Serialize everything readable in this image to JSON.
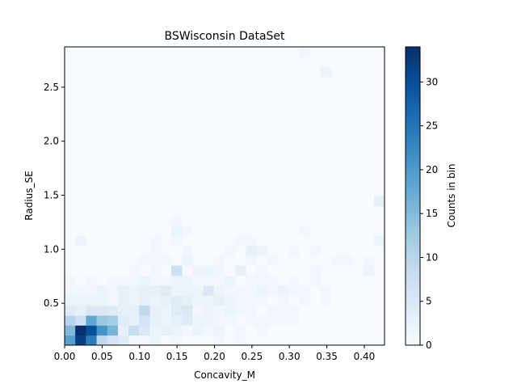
{
  "chart_data": {
    "type": "heatmap",
    "title": "BSWisconsin DataSet",
    "xlabel": "Concavity_M",
    "ylabel": "Radius_SE",
    "colorbar_label": "Counts in bin",
    "colormap": "Blues",
    "xlim": [
      0.0,
      0.427
    ],
    "ylim": [
      0.112,
      2.873
    ],
    "clim": [
      0,
      34
    ],
    "x_ticks": [
      0.0,
      0.05,
      0.1,
      0.15,
      0.2,
      0.25,
      0.3,
      0.35,
      0.4
    ],
    "x_tick_labels": [
      "0.00",
      "0.05",
      "0.10",
      "0.15",
      "0.20",
      "0.25",
      "0.30",
      "0.35",
      "0.40"
    ],
    "y_ticks": [
      0.5,
      1.0,
      1.5,
      2.0,
      2.5
    ],
    "y_tick_labels": [
      "0.5",
      "1.0",
      "1.5",
      "2.0",
      "2.5"
    ],
    "colorbar_ticks": [
      0,
      5,
      10,
      15,
      20,
      25,
      30
    ],
    "colorbar_tick_labels": [
      "0",
      "5",
      "10",
      "15",
      "20",
      "25",
      "30"
    ],
    "bins_x": 30,
    "bins_y": 30,
    "grid": false,
    "cells": [
      [
        0,
        0,
        19
      ],
      [
        1,
        0,
        32
      ],
      [
        2,
        0,
        24
      ],
      [
        3,
        0,
        9
      ],
      [
        4,
        0,
        6
      ],
      [
        5,
        0,
        4
      ],
      [
        6,
        0,
        1
      ],
      [
        7,
        0,
        1
      ],
      [
        8,
        0,
        2
      ],
      [
        10,
        0,
        1
      ],
      [
        14,
        0,
        1
      ],
      [
        16,
        0,
        1
      ],
      [
        0,
        1,
        15
      ],
      [
        1,
        1,
        34
      ],
      [
        2,
        1,
        30
      ],
      [
        3,
        1,
        21
      ],
      [
        4,
        1,
        16
      ],
      [
        5,
        1,
        3
      ],
      [
        6,
        1,
        8
      ],
      [
        7,
        1,
        5
      ],
      [
        8,
        1,
        2
      ],
      [
        9,
        1,
        3
      ],
      [
        10,
        1,
        2
      ],
      [
        11,
        1,
        1
      ],
      [
        12,
        1,
        2
      ],
      [
        13,
        1,
        1
      ],
      [
        14,
        1,
        2
      ],
      [
        16,
        1,
        1
      ],
      [
        18,
        1,
        1
      ],
      [
        0,
        2,
        10
      ],
      [
        1,
        2,
        7
      ],
      [
        2,
        2,
        18
      ],
      [
        3,
        2,
        13
      ],
      [
        4,
        2,
        12
      ],
      [
        5,
        2,
        4
      ],
      [
        6,
        2,
        3
      ],
      [
        7,
        2,
        6
      ],
      [
        8,
        2,
        3
      ],
      [
        9,
        2,
        2
      ],
      [
        10,
        2,
        3
      ],
      [
        11,
        2,
        4
      ],
      [
        12,
        2,
        2
      ],
      [
        13,
        2,
        2
      ],
      [
        14,
        2,
        1
      ],
      [
        15,
        2,
        1
      ],
      [
        17,
        2,
        1
      ],
      [
        18,
        2,
        1
      ],
      [
        19,
        2,
        1
      ],
      [
        20,
        2,
        1
      ],
      [
        21,
        2,
        1
      ],
      [
        0,
        3,
        4
      ],
      [
        1,
        3,
        3
      ],
      [
        2,
        3,
        5
      ],
      [
        3,
        3,
        5
      ],
      [
        4,
        3,
        4
      ],
      [
        5,
        3,
        3
      ],
      [
        6,
        3,
        3
      ],
      [
        7,
        3,
        9
      ],
      [
        8,
        3,
        3
      ],
      [
        9,
        3,
        2
      ],
      [
        10,
        3,
        4
      ],
      [
        11,
        3,
        5
      ],
      [
        12,
        3,
        1
      ],
      [
        13,
        3,
        2
      ],
      [
        14,
        3,
        1
      ],
      [
        15,
        3,
        2
      ],
      [
        16,
        3,
        1
      ],
      [
        17,
        3,
        1
      ],
      [
        19,
        3,
        1
      ],
      [
        20,
        3,
        1
      ],
      [
        21,
        3,
        1
      ],
      [
        0,
        4,
        2
      ],
      [
        1,
        4,
        2
      ],
      [
        2,
        4,
        2
      ],
      [
        3,
        4,
        2
      ],
      [
        4,
        4,
        1
      ],
      [
        5,
        4,
        3
      ],
      [
        6,
        4,
        2
      ],
      [
        7,
        4,
        3
      ],
      [
        8,
        4,
        2
      ],
      [
        9,
        4,
        3
      ],
      [
        10,
        4,
        4
      ],
      [
        11,
        4,
        3
      ],
      [
        12,
        4,
        2
      ],
      [
        13,
        4,
        2
      ],
      [
        14,
        4,
        3
      ],
      [
        15,
        4,
        2
      ],
      [
        16,
        4,
        1
      ],
      [
        17,
        4,
        1
      ],
      [
        18,
        4,
        1
      ],
      [
        20,
        4,
        1
      ],
      [
        22,
        4,
        1
      ],
      [
        24,
        4,
        1
      ],
      [
        0,
        5,
        1
      ],
      [
        1,
        5,
        1
      ],
      [
        2,
        5,
        1
      ],
      [
        3,
        5,
        2
      ],
      [
        4,
        5,
        1
      ],
      [
        5,
        5,
        3
      ],
      [
        6,
        5,
        2
      ],
      [
        7,
        5,
        3
      ],
      [
        8,
        5,
        3
      ],
      [
        9,
        5,
        4
      ],
      [
        10,
        5,
        2
      ],
      [
        11,
        5,
        2
      ],
      [
        12,
        5,
        2
      ],
      [
        13,
        5,
        5
      ],
      [
        14,
        5,
        2
      ],
      [
        15,
        5,
        1
      ],
      [
        16,
        5,
        1
      ],
      [
        17,
        5,
        1
      ],
      [
        18,
        5,
        2
      ],
      [
        19,
        5,
        1
      ],
      [
        20,
        5,
        2
      ],
      [
        21,
        5,
        1
      ],
      [
        22,
        5,
        1
      ],
      [
        24,
        5,
        1
      ],
      [
        0,
        6,
        1
      ],
      [
        2,
        6,
        1
      ],
      [
        4,
        6,
        1
      ],
      [
        5,
        6,
        1
      ],
      [
        6,
        6,
        1
      ],
      [
        7,
        6,
        2
      ],
      [
        8,
        6,
        1
      ],
      [
        9,
        6,
        1
      ],
      [
        10,
        6,
        2
      ],
      [
        11,
        6,
        2
      ],
      [
        12,
        6,
        1
      ],
      [
        13,
        6,
        1
      ],
      [
        14,
        6,
        1
      ],
      [
        15,
        6,
        2
      ],
      [
        17,
        6,
        1
      ],
      [
        18,
        6,
        1
      ],
      [
        19,
        6,
        1
      ],
      [
        21,
        6,
        1
      ],
      [
        23,
        6,
        1
      ],
      [
        6,
        7,
        1
      ],
      [
        8,
        7,
        1
      ],
      [
        10,
        7,
        7
      ],
      [
        12,
        7,
        2
      ],
      [
        13,
        7,
        2
      ],
      [
        14,
        7,
        1
      ],
      [
        16,
        7,
        3
      ],
      [
        18,
        7,
        1
      ],
      [
        23,
        7,
        1
      ],
      [
        28,
        7,
        2
      ],
      [
        7,
        8,
        1
      ],
      [
        8,
        8,
        1
      ],
      [
        9,
        8,
        1
      ],
      [
        11,
        8,
        2
      ],
      [
        14,
        8,
        1
      ],
      [
        17,
        8,
        1
      ],
      [
        19,
        8,
        1
      ],
      [
        25,
        8,
        1
      ],
      [
        26,
        8,
        1
      ],
      [
        28,
        8,
        1
      ],
      [
        8,
        9,
        1
      ],
      [
        11,
        9,
        1
      ],
      [
        15,
        9,
        1
      ],
      [
        17,
        9,
        3
      ],
      [
        18,
        9,
        2
      ],
      [
        21,
        9,
        1
      ],
      [
        23,
        9,
        1
      ],
      [
        1,
        10,
        2
      ],
      [
        8,
        10,
        1
      ],
      [
        10,
        10,
        1
      ],
      [
        16,
        10,
        1
      ],
      [
        17,
        10,
        1
      ],
      [
        29,
        10,
        2
      ],
      [
        10,
        11,
        2
      ],
      [
        11,
        11,
        1
      ],
      [
        22,
        11,
        1
      ],
      [
        10,
        12,
        1
      ],
      [
        29,
        14,
        3
      ],
      [
        24,
        27,
        2
      ],
      [
        22,
        29,
        1
      ]
    ]
  }
}
